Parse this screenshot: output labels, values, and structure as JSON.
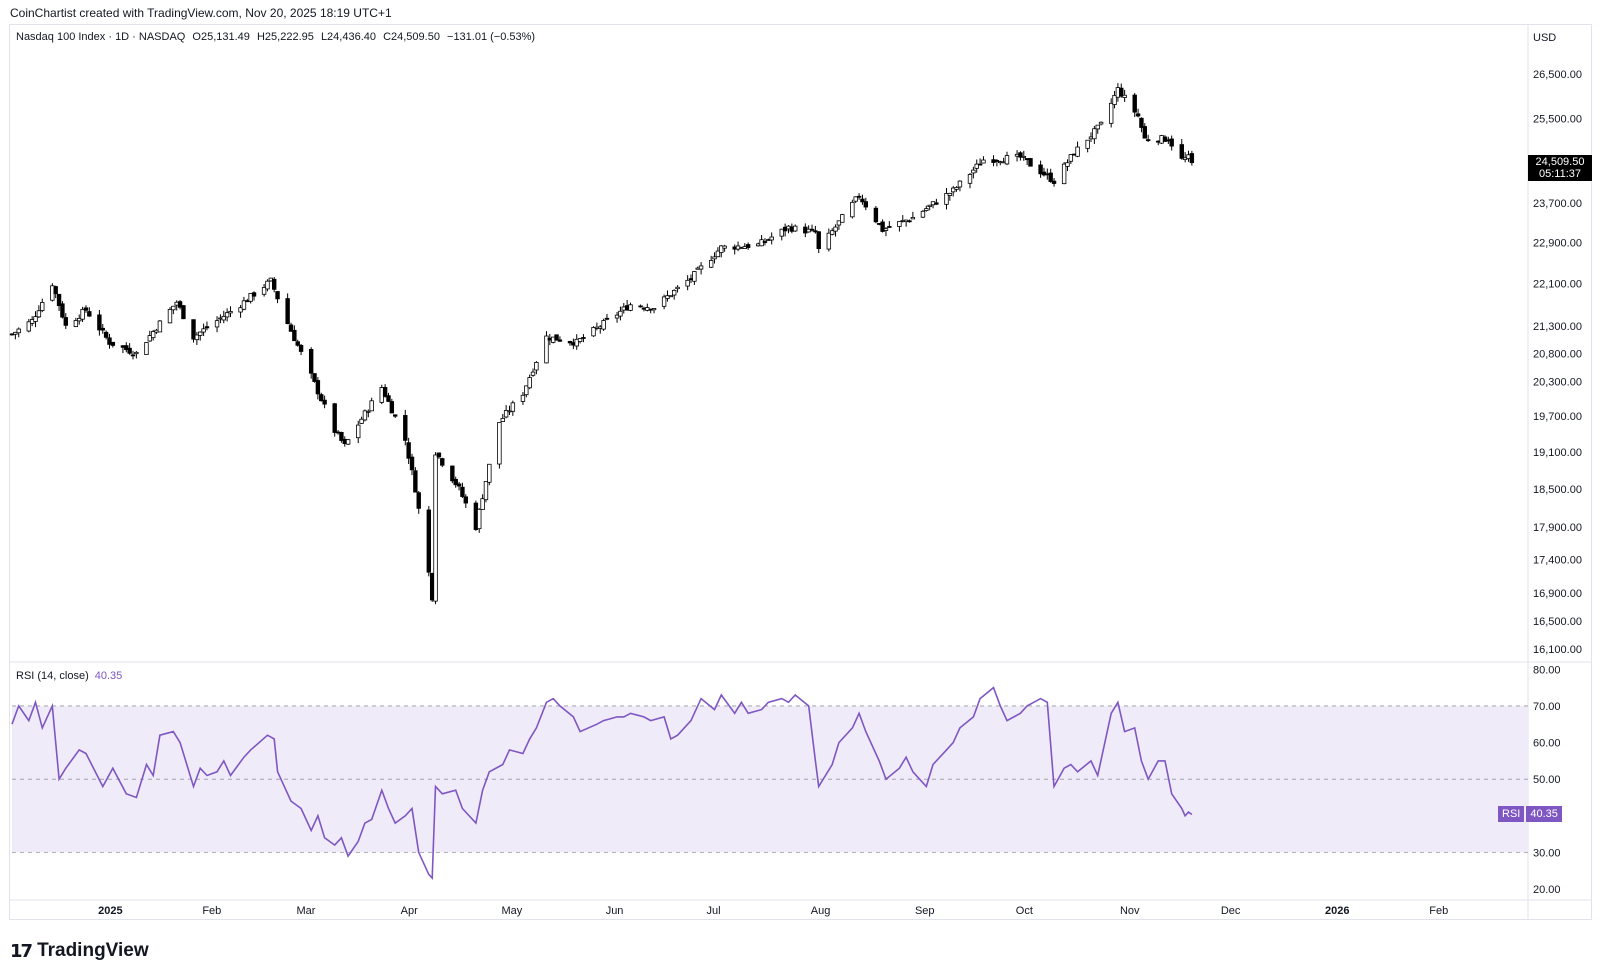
{
  "credit": "CoinChartist created with TradingView.com, Nov 20, 2025 18:19 UTC+1",
  "legend": {
    "symbol": "Nasdaq 100 Index · 1D · NASDAQ",
    "open": "O25,131.49",
    "high": "H25,222.95",
    "low": "L24,436.40",
    "close": "C24,509.50",
    "change": "−131.01 (−0.53%)"
  },
  "currency": "USD",
  "last_price": "24,509.50",
  "countdown": "05:11:37",
  "rsi_legend": {
    "name": "RSI (14, close)",
    "value": "40.35"
  },
  "rsi_tag": {
    "name": "RSI",
    "value": "40.35"
  },
  "brand": "TradingView",
  "colors": {
    "rsi_line": "#7e57c2",
    "rsi_band": "#f0ebf9",
    "candle_up": "#ffffff",
    "candle_down": "#000000"
  },
  "chart_data": [
    {
      "type": "candlestick",
      "title": "Nasdaq 100 Index · 1D · NASDAQ",
      "yscale": "log",
      "y_ticks": [
        "26,500.00",
        "25,500.00",
        "23,700.00",
        "22,900.00",
        "22,100.00",
        "21,300.00",
        "20,800.00",
        "20,300.00",
        "19,700.00",
        "19,100.00",
        "18,500.00",
        "17,900.00",
        "17,400.00",
        "16,900.00",
        "16,500.00",
        "16,100.00"
      ],
      "x_ticks": [
        "2025",
        "Feb",
        "Mar",
        "Apr",
        "May",
        "Jun",
        "Jul",
        "Aug",
        "Sep",
        "Oct",
        "Nov",
        "Dec",
        "2026",
        "Feb"
      ],
      "x_range": [
        "2024-12-04",
        "2026-02-28"
      ],
      "ylim": [
        15950,
        27100
      ],
      "approx_daily_close_path": [
        [
          "2024-12-04",
          21150
        ],
        [
          "2024-12-10",
          21400
        ],
        [
          "2024-12-16",
          22100
        ],
        [
          "2024-12-20",
          21300
        ],
        [
          "2024-12-26",
          21600
        ],
        [
          "2025-01-02",
          21000
        ],
        [
          "2025-01-10",
          20800
        ],
        [
          "2025-01-15",
          21200
        ],
        [
          "2025-01-22",
          21750
        ],
        [
          "2025-01-27",
          21100
        ],
        [
          "2025-02-03",
          21400
        ],
        [
          "2025-02-10",
          21700
        ],
        [
          "2025-02-19",
          22150
        ],
        [
          "2025-02-24",
          21350
        ],
        [
          "2025-03-03",
          20400
        ],
        [
          "2025-03-10",
          19450
        ],
        [
          "2025-03-13",
          19200
        ],
        [
          "2025-03-24",
          20200
        ],
        [
          "2025-03-31",
          19300
        ],
        [
          "2025-04-03",
          18500
        ],
        [
          "2025-04-07",
          17200
        ],
        [
          "2025-04-08",
          16850
        ],
        [
          "2025-04-09",
          19100
        ],
        [
          "2025-04-16",
          18500
        ],
        [
          "2025-04-21",
          17900
        ],
        [
          "2025-04-28",
          19600
        ],
        [
          "2025-05-05",
          20100
        ],
        [
          "2025-05-12",
          21100
        ],
        [
          "2025-05-21",
          21000
        ],
        [
          "2025-05-28",
          21300
        ],
        [
          "2025-06-06",
          21700
        ],
        [
          "2025-06-13",
          21650
        ],
        [
          "2025-06-24",
          22200
        ],
        [
          "2025-07-03",
          22800
        ],
        [
          "2025-07-14",
          22850
        ],
        [
          "2025-07-23",
          23200
        ],
        [
          "2025-07-31",
          23100
        ],
        [
          "2025-08-01",
          22750
        ],
        [
          "2025-08-13",
          23850
        ],
        [
          "2025-08-20",
          23150
        ],
        [
          "2025-08-29",
          23400
        ],
        [
          "2025-09-10",
          23950
        ],
        [
          "2025-09-19",
          24600
        ],
        [
          "2025-09-30",
          24650
        ],
        [
          "2025-10-10",
          24150
        ],
        [
          "2025-10-16",
          24750
        ],
        [
          "2025-10-24",
          25350
        ],
        [
          "2025-10-29",
          26150
        ],
        [
          "2025-11-04",
          25550
        ],
        [
          "2025-11-06",
          25050
        ],
        [
          "2025-11-13",
          25050
        ],
        [
          "2025-11-17",
          24600
        ],
        [
          "2025-11-19",
          24640
        ],
        [
          "2025-11-20",
          24509.5
        ]
      ]
    },
    {
      "type": "line",
      "title": "RSI (14, close)",
      "y_ticks": [
        "80.00",
        "70.00",
        "60.00",
        "50.00",
        "40.00",
        "30.00",
        "20.00"
      ],
      "bands": [
        30,
        50,
        70
      ],
      "ylim": [
        17,
        82
      ],
      "series": [
        {
          "name": "RSI",
          "values": [
            [
              "2024-12-04",
              65
            ],
            [
              "2024-12-06",
              70
            ],
            [
              "2024-12-09",
              66
            ],
            [
              "2024-12-11",
              71
            ],
            [
              "2024-12-13",
              64
            ],
            [
              "2024-12-16",
              70
            ],
            [
              "2024-12-18",
              50
            ],
            [
              "2024-12-20",
              53
            ],
            [
              "2024-12-24",
              58
            ],
            [
              "2024-12-26",
              57
            ],
            [
              "2024-12-31",
              48
            ],
            [
              "2025-01-03",
              53
            ],
            [
              "2025-01-07",
              46
            ],
            [
              "2025-01-10",
              45
            ],
            [
              "2025-01-13",
              54
            ],
            [
              "2025-01-15",
              51
            ],
            [
              "2025-01-17",
              62
            ],
            [
              "2025-01-21",
              63
            ],
            [
              "2025-01-23",
              60
            ],
            [
              "2025-01-27",
              48
            ],
            [
              "2025-01-29",
              53
            ],
            [
              "2025-01-31",
              51
            ],
            [
              "2025-02-03",
              52
            ],
            [
              "2025-02-05",
              55
            ],
            [
              "2025-02-07",
              51
            ],
            [
              "2025-02-11",
              56
            ],
            [
              "2025-02-13",
              58
            ],
            [
              "2025-02-18",
              62
            ],
            [
              "2025-02-20",
              61
            ],
            [
              "2025-02-21",
              52
            ],
            [
              "2025-02-25",
              44
            ],
            [
              "2025-02-28",
              42
            ],
            [
              "2025-03-03",
              36
            ],
            [
              "2025-03-05",
              40
            ],
            [
              "2025-03-07",
              34
            ],
            [
              "2025-03-10",
              32
            ],
            [
              "2025-03-12",
              34
            ],
            [
              "2025-03-14",
              29
            ],
            [
              "2025-03-17",
              33
            ],
            [
              "2025-03-19",
              38
            ],
            [
              "2025-03-21",
              39
            ],
            [
              "2025-03-24",
              47
            ],
            [
              "2025-03-26",
              42
            ],
            [
              "2025-03-28",
              38
            ],
            [
              "2025-03-31",
              40
            ],
            [
              "2025-04-02",
              42
            ],
            [
              "2025-04-04",
              30
            ],
            [
              "2025-04-07",
              24
            ],
            [
              "2025-04-08",
              23
            ],
            [
              "2025-04-09",
              48
            ],
            [
              "2025-04-11",
              46
            ],
            [
              "2025-04-15",
              47
            ],
            [
              "2025-04-17",
              42
            ],
            [
              "2025-04-21",
              38
            ],
            [
              "2025-04-23",
              47
            ],
            [
              "2025-04-25",
              52
            ],
            [
              "2025-04-29",
              54
            ],
            [
              "2025-05-01",
              58
            ],
            [
              "2025-05-05",
              57
            ],
            [
              "2025-05-07",
              61
            ],
            [
              "2025-05-09",
              64
            ],
            [
              "2025-05-12",
              71
            ],
            [
              "2025-05-14",
              72
            ],
            [
              "2025-05-16",
              70
            ],
            [
              "2025-05-20",
              67
            ],
            [
              "2025-05-22",
              63
            ],
            [
              "2025-05-27",
              65
            ],
            [
              "2025-05-29",
              66
            ],
            [
              "2025-06-02",
              67
            ],
            [
              "2025-06-04",
              67
            ],
            [
              "2025-06-06",
              68
            ],
            [
              "2025-06-10",
              67
            ],
            [
              "2025-06-12",
              66
            ],
            [
              "2025-06-16",
              67
            ],
            [
              "2025-06-18",
              61
            ],
            [
              "2025-06-20",
              62
            ],
            [
              "2025-06-24",
              66
            ],
            [
              "2025-06-27",
              72
            ],
            [
              "2025-07-01",
              69
            ],
            [
              "2025-07-03",
              73
            ],
            [
              "2025-07-07",
              68
            ],
            [
              "2025-07-09",
              71
            ],
            [
              "2025-07-11",
              68
            ],
            [
              "2025-07-15",
              69
            ],
            [
              "2025-07-17",
              71
            ],
            [
              "2025-07-21",
              72
            ],
            [
              "2025-07-23",
              71
            ],
            [
              "2025-07-25",
              73
            ],
            [
              "2025-07-29",
              70
            ],
            [
              "2025-07-31",
              55
            ],
            [
              "2025-08-01",
              48
            ],
            [
              "2025-08-05",
              54
            ],
            [
              "2025-08-07",
              60
            ],
            [
              "2025-08-11",
              64
            ],
            [
              "2025-08-13",
              68
            ],
            [
              "2025-08-15",
              63
            ],
            [
              "2025-08-19",
              55
            ],
            [
              "2025-08-21",
              50
            ],
            [
              "2025-08-25",
              53
            ],
            [
              "2025-08-27",
              56
            ],
            [
              "2025-08-29",
              52
            ],
            [
              "2025-09-02",
              48
            ],
            [
              "2025-09-04",
              54
            ],
            [
              "2025-09-08",
              58
            ],
            [
              "2025-09-10",
              60
            ],
            [
              "2025-09-12",
              64
            ],
            [
              "2025-09-16",
              67
            ],
            [
              "2025-09-18",
              72
            ],
            [
              "2025-09-22",
              75
            ],
            [
              "2025-09-24",
              70
            ],
            [
              "2025-09-26",
              66
            ],
            [
              "2025-09-30",
              68
            ],
            [
              "2025-10-02",
              70
            ],
            [
              "2025-10-06",
              72
            ],
            [
              "2025-10-08",
              71
            ],
            [
              "2025-10-10",
              48
            ],
            [
              "2025-10-13",
              53
            ],
            [
              "2025-10-15",
              54
            ],
            [
              "2025-10-17",
              52
            ],
            [
              "2025-10-21",
              55
            ],
            [
              "2025-10-23",
              51
            ],
            [
              "2025-10-27",
              68
            ],
            [
              "2025-10-29",
              71
            ],
            [
              "2025-10-31",
              63
            ],
            [
              "2025-11-03",
              64
            ],
            [
              "2025-11-05",
              55
            ],
            [
              "2025-11-07",
              50
            ],
            [
              "2025-11-10",
              55
            ],
            [
              "2025-11-12",
              55
            ],
            [
              "2025-11-14",
              46
            ],
            [
              "2025-11-17",
              42
            ],
            [
              "2025-11-18",
              40
            ],
            [
              "2025-11-19",
              41
            ],
            [
              "2025-11-20",
              40.35
            ]
          ]
        }
      ]
    }
  ]
}
